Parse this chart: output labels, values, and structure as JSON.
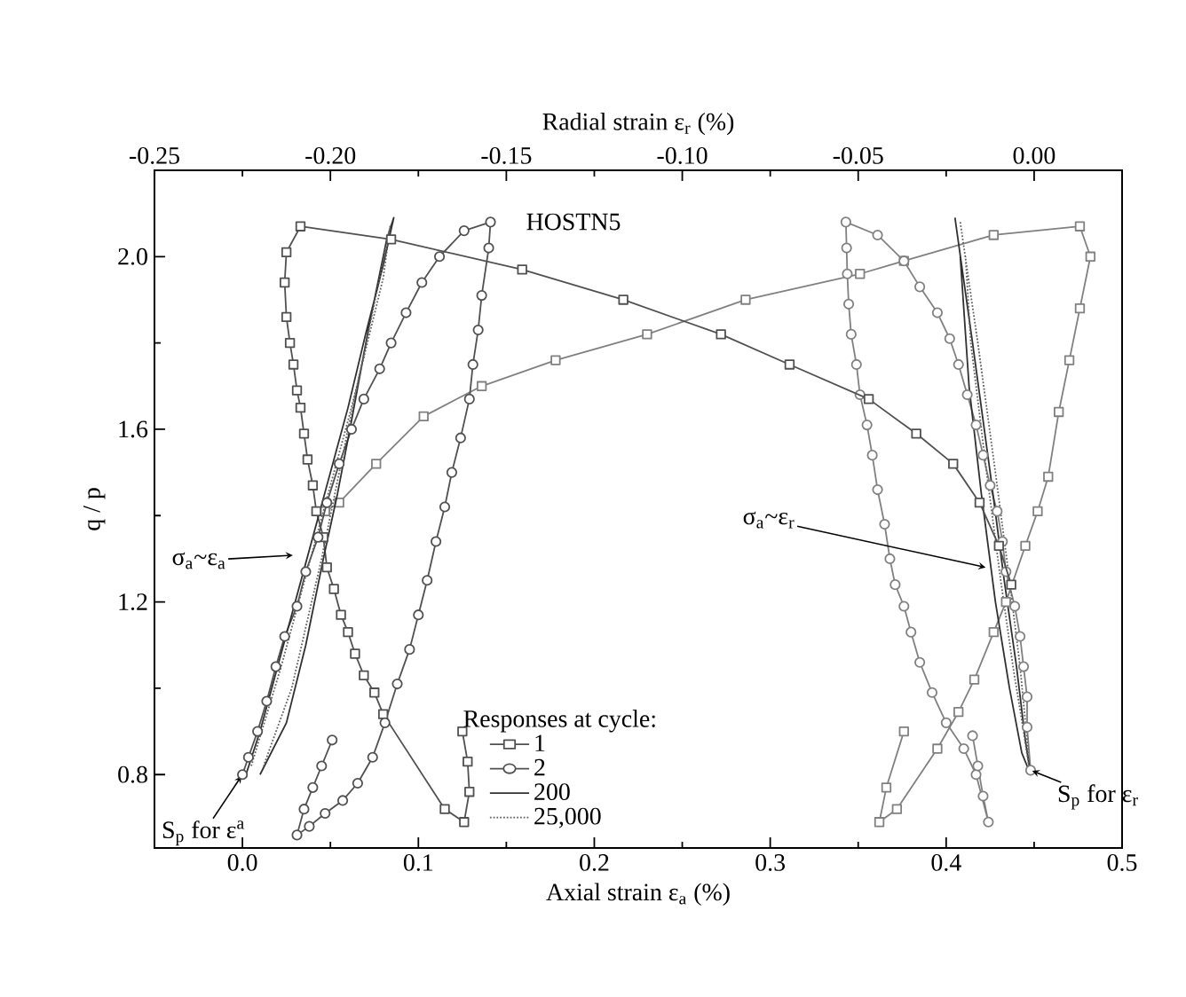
{
  "chart_data": {
    "type": "line",
    "xlabel": "Axial strain ε$_{a}$ (%)",
    "x2label": "Radial strain ε$_{r}$ (%)",
    "ylabel": "q / p",
    "legend_title": "Responses at cycle:",
    "legend": "bottom",
    "xlim": [
      -0.05,
      0.5
    ],
    "xticks": [
      {
        "value": 0,
        "label": "0.0"
      },
      {
        "value": -0.05,
        "label": null
      },
      {
        "value": 0.05,
        "label": null
      },
      0.1,
      {
        "value": 0.15,
        "label": null
      },
      0.2,
      {
        "value": 0.25,
        "label": null
      },
      0.3,
      {
        "value": 0.35,
        "label": null
      },
      0.4,
      {
        "value": 0.45,
        "label": null
      },
      0.5
    ],
    "x2lim": [
      -0.25,
      0.025
    ],
    "x2ticks": [
      -0.25,
      {
        "value": -0.225,
        "label": null
      },
      {
        "value": -0.2,
        "label": "-0.20"
      },
      {
        "value": -0.175,
        "label": null
      },
      -0.15,
      {
        "value": -0.125,
        "label": null
      },
      {
        "value": -0.1,
        "label": "-0.10"
      },
      {
        "value": -0.075,
        "label": null
      },
      -0.05,
      {
        "value": -0.025,
        "label": null
      },
      {
        "value": 0,
        "label": "0.00"
      }
    ],
    "ylim": [
      0.63,
      2.2
    ],
    "yticks": [
      0.8,
      {
        "value": 1.0,
        "label": null
      },
      1.2,
      {
        "value": 1.4,
        "label": null
      },
      1.6,
      {
        "value": 1.8,
        "label": null
      },
      {
        "value": 2.0,
        "label": "2.0"
      }
    ],
    "annotations": [
      "HOSTN5",
      "σ$_{a}$~ε$_{a}$",
      {
        "text": "S$_{p}$ for ε$^{a}$",
        "x": 0.0,
        "y": 0.8
      },
      "σ$_{a}$~ε$_{r}$",
      {
        "text": "S$_{p}$ for ε$_{r}$",
        "x": 0.448,
        "y": 0.81
      }
    ],
    "series": [
      {
        "name": "1",
        "color": "#505050",
        "marker": "square",
        "line_style": "solid",
        "x": [
          0.125,
          0.128,
          0.129,
          0.126,
          0.115,
          0.08,
          0.075,
          0.069,
          0.064,
          0.06,
          0.056,
          0.052,
          0.048,
          0.046,
          0.042,
          0.04,
          0.037,
          0.035,
          0.033,
          0.031,
          0.029,
          0.027,
          0.025,
          0.024,
          0.025,
          0.033,
          0.0845,
          0.159,
          0.2165,
          0.272,
          0.311,
          0.356,
          0.383,
          0.404,
          0.419,
          0.43,
          0.437
        ],
        "values": [
          0.9,
          0.83,
          0.76,
          0.69,
          0.72,
          0.94,
          0.99,
          1.03,
          1.08,
          1.13,
          1.17,
          1.23,
          1.28,
          1.35,
          1.41,
          1.47,
          1.53,
          1.59,
          1.65,
          1.69,
          1.75,
          1.8,
          1.86,
          1.94,
          2.01,
          2.07,
          2.04,
          1.97,
          1.9,
          1.82,
          1.75,
          1.67,
          1.59,
          1.52,
          1.43,
          1.33,
          1.24
        ]
      },
      {
        "color": "#808080",
        "marker": "square",
        "line_style": "solid",
        "axis": "x2",
        "x": [
          -0.037,
          -0.042,
          -0.044,
          -0.039,
          -0.0275,
          -0.0215,
          -0.017,
          -0.0115,
          -0.008,
          -0.0025,
          0.001,
          0.004,
          0.007,
          0.01,
          0.013,
          0.016,
          0.013,
          -0.0115,
          -0.037,
          -0.0495,
          -0.082,
          -0.11,
          -0.136,
          -0.157,
          -0.1735,
          -0.187,
          -0.1975,
          -0.2015
        ],
        "values": [
          0.9,
          0.77,
          0.69,
          0.72,
          0.86,
          0.945,
          1.02,
          1.13,
          1.2,
          1.33,
          1.41,
          1.49,
          1.64,
          1.76,
          1.88,
          2.0,
          2.07,
          2.05,
          1.99,
          1.96,
          1.9,
          1.82,
          1.76,
          1.7,
          1.63,
          1.52,
          1.43,
          1.41
        ]
      },
      {
        "name": "2",
        "color": "#505050",
        "marker": "circle",
        "line_style": "solid",
        "x": [
          0.0,
          0.0034,
          0.0086,
          0.0138,
          0.019,
          0.024,
          0.031,
          0.036,
          0.043,
          0.048,
          0.055,
          0.062,
          0.069,
          0.078,
          0.0845,
          0.093,
          0.102,
          0.112,
          0.126,
          0.141,
          0.14,
          0.136,
          0.134,
          0.131,
          0.129,
          0.124,
          0.119,
          0.115,
          0.11,
          0.105,
          0.1,
          0.095,
          0.088,
          0.081,
          0.074,
          0.0655,
          0.057,
          0.047,
          0.038,
          0.031,
          0.035,
          0.04,
          0.045,
          0.051
        ],
        "values": [
          0.8,
          0.84,
          0.9,
          0.97,
          1.05,
          1.12,
          1.19,
          1.27,
          1.35,
          1.43,
          1.52,
          1.6,
          1.67,
          1.74,
          1.8,
          1.87,
          1.94,
          2.0,
          2.06,
          2.08,
          2.02,
          1.91,
          1.83,
          1.75,
          1.67,
          1.58,
          1.5,
          1.42,
          1.34,
          1.25,
          1.17,
          1.09,
          1.01,
          0.92,
          0.84,
          0.78,
          0.74,
          0.71,
          0.68,
          0.66,
          0.72,
          0.77,
          0.82,
          0.88
        ]
      },
      {
        "color": "#808080",
        "marker": "circle",
        "line_style": "solid",
        "axis": "x2",
        "x": [
          -0.001,
          -0.002,
          -0.002,
          -0.003,
          -0.004,
          -0.0055,
          -0.008,
          -0.009,
          -0.0105,
          -0.0125,
          -0.0145,
          -0.0165,
          -0.019,
          -0.0215,
          -0.024,
          -0.0275,
          -0.0325,
          -0.037,
          -0.0445,
          -0.0535,
          -0.0533,
          -0.0531,
          -0.0527,
          -0.052,
          -0.0505,
          -0.0495,
          -0.0475,
          -0.046,
          -0.0445,
          -0.0425,
          -0.041,
          -0.0395,
          -0.037,
          -0.035,
          -0.0325,
          -0.029,
          -0.025,
          -0.02,
          -0.0165,
          -0.013,
          -0.0145,
          -0.016,
          -0.0175
        ],
        "values": [
          0.81,
          0.91,
          0.98,
          1.05,
          1.12,
          1.19,
          1.27,
          1.34,
          1.41,
          1.47,
          1.54,
          1.61,
          1.68,
          1.75,
          1.81,
          1.87,
          1.93,
          1.99,
          2.05,
          2.08,
          2.02,
          1.96,
          1.89,
          1.82,
          1.75,
          1.68,
          1.61,
          1.54,
          1.46,
          1.38,
          1.3,
          1.24,
          1.19,
          1.13,
          1.06,
          0.99,
          0.92,
          0.86,
          0.8,
          0.69,
          0.75,
          0.82,
          0.89
        ]
      },
      {
        "name": "200",
        "color": "#303030",
        "marker": "none",
        "line_style": "solid",
        "x": [
          0.002,
          0.01,
          0.02,
          0.03,
          0.04,
          0.05,
          0.06,
          0.07,
          0.08,
          0.086,
          0.082,
          0.072,
          0.062,
          0.054,
          0.046,
          0.036,
          0.025,
          0.01
        ],
        "values": [
          0.8,
          0.9,
          1.05,
          1.2,
          1.35,
          1.5,
          1.65,
          1.82,
          1.98,
          2.09,
          2.04,
          1.84,
          1.62,
          1.45,
          1.3,
          1.1,
          0.92,
          0.8
        ]
      },
      {
        "color": "#303030",
        "marker": "none",
        "line_style": "solid",
        "axis": "x2",
        "x": [
          -0.0225,
          -0.0175,
          -0.0125,
          -0.0085,
          -0.005,
          -0.0025,
          -0.001,
          -0.0035,
          -0.007,
          -0.011,
          -0.015,
          -0.0185,
          -0.021
        ],
        "values": [
          2.09,
          1.8,
          1.5,
          1.25,
          1.05,
          0.88,
          0.8,
          0.85,
          1.0,
          1.2,
          1.45,
          1.7,
          2.0
        ]
      },
      {
        "name": "25,000",
        "color": "#606060",
        "marker": "none",
        "line_style": "dotted",
        "x": [
          0.005,
          0.022,
          0.042,
          0.062,
          0.08,
          0.084,
          0.078,
          0.06,
          0.045,
          0.028,
          0.012
        ],
        "values": [
          0.82,
          1.05,
          1.35,
          1.65,
          1.95,
          2.07,
          1.95,
          1.6,
          1.3,
          1.0,
          0.82
        ]
      },
      {
        "color": "#606060",
        "marker": "none",
        "line_style": "dotted",
        "axis": "x2",
        "x": [
          -0.021,
          -0.016,
          -0.011,
          -0.007,
          -0.004,
          -0.002,
          -0.0015,
          -0.003,
          -0.006,
          -0.0095,
          -0.0135,
          -0.018,
          -0.0195
        ],
        "values": [
          2.08,
          1.8,
          1.5,
          1.25,
          1.05,
          0.88,
          0.82,
          0.9,
          1.05,
          1.25,
          1.5,
          1.8,
          2.0
        ]
      }
    ]
  }
}
